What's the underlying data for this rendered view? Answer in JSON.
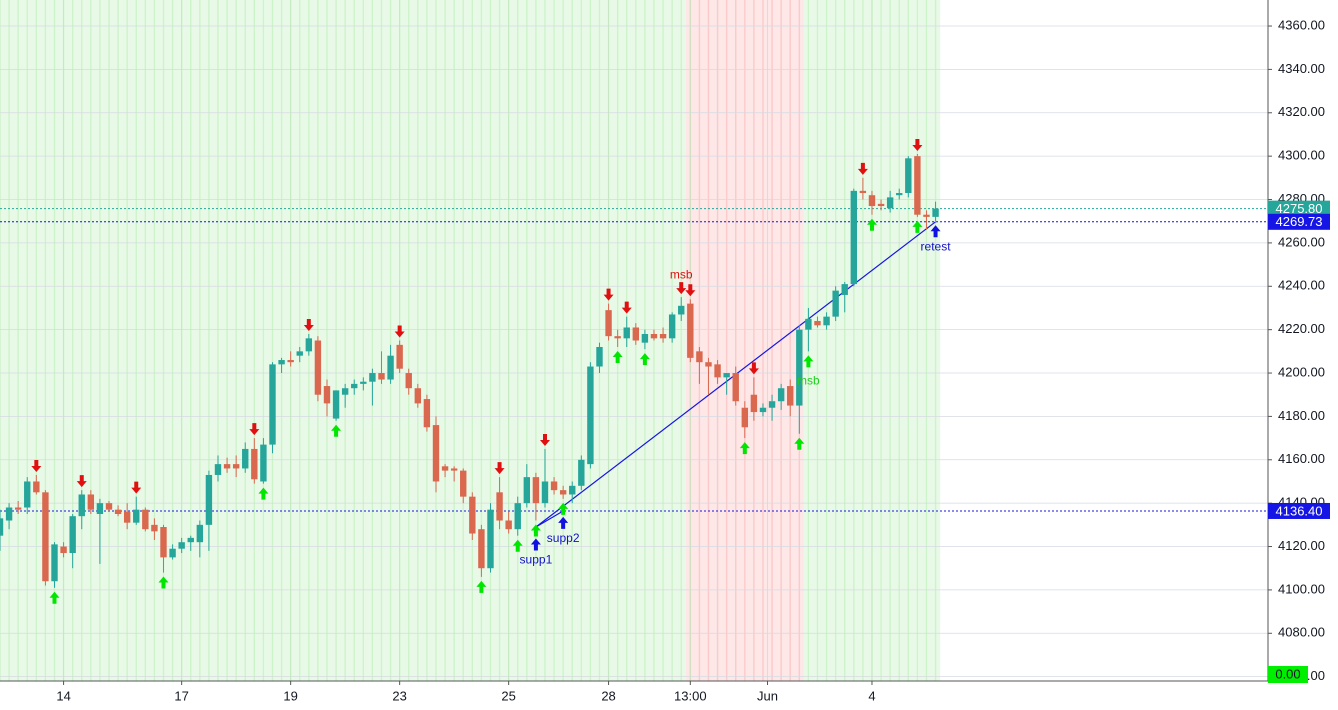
{
  "chart_data": {
    "type": "candlestick",
    "x": [
      0,
      1,
      2,
      3,
      4,
      5,
      6,
      7,
      8,
      9,
      10,
      11,
      12,
      13,
      14,
      15,
      16,
      17,
      18,
      19,
      20,
      21,
      22,
      23,
      24,
      25,
      26,
      27,
      28,
      29,
      30,
      31,
      32,
      33,
      34,
      35,
      36,
      37,
      38,
      39,
      40,
      41,
      42,
      43,
      44,
      45,
      46,
      47,
      48,
      49,
      50,
      51,
      52,
      53,
      54,
      55,
      56,
      57,
      58,
      59,
      60,
      61,
      62,
      63,
      64,
      65,
      66,
      67,
      68,
      69,
      70,
      71,
      72,
      73,
      74,
      75,
      76,
      77,
      78,
      79,
      80,
      81,
      82,
      83,
      84,
      85,
      86,
      87,
      88,
      89,
      90,
      91,
      92,
      93,
      94,
      95,
      96,
      97,
      98,
      99,
      100,
      101,
      102,
      103
    ],
    "open": [
      4125,
      4132,
      4138,
      4138,
      4150,
      4145,
      4104,
      4120,
      4117,
      4134,
      4144,
      4135,
      4140,
      4137,
      4136,
      4131,
      4137,
      4130,
      4129,
      4115,
      4119,
      4122,
      4122,
      4130,
      4153,
      4158,
      4158,
      4156,
      4165,
      4150,
      4167,
      4204,
      4206,
      4208,
      4210,
      4215,
      4194,
      4179,
      4190,
      4193,
      4195,
      4196,
      4200,
      4197,
      4213,
      4200,
      4193,
      4188,
      4176,
      4157,
      4156,
      4155,
      4143,
      4128,
      4110,
      4145,
      4132,
      4128,
      4140,
      4152,
      4140,
      4150,
      4146,
      4144,
      4148,
      4158,
      4203,
      4229,
      4217,
      4216,
      4221,
      4214,
      4218,
      4218,
      4216,
      4227,
      4232,
      4210,
      4205,
      4204,
      4198,
      4200,
      4184,
      4190,
      4182,
      4184,
      4187,
      4194,
      4185,
      4220,
      4224,
      4222,
      4226,
      4236,
      4241,
      4284,
      4282,
      4278,
      4276,
      4282,
      4283,
      4300,
      4273,
      4272
    ],
    "high": [
      4137,
      4140,
      4141,
      4152,
      4153,
      4146,
      4122,
      4122,
      4135,
      4146,
      4146,
      4142,
      4141,
      4139,
      4140,
      4143,
      4138,
      4133,
      4130,
      4121,
      4124,
      4125,
      4132,
      4155,
      4162,
      4161,
      4162,
      4168,
      4170,
      4170,
      4205,
      4207,
      4210,
      4212,
      4218,
      4217,
      4197,
      4192,
      4195,
      4197,
      4198,
      4202,
      4210,
      4213,
      4215,
      4202,
      4195,
      4190,
      4180,
      4158,
      4157,
      4156,
      4145,
      4130,
      4140,
      4152,
      4136,
      4143,
      4158,
      4154,
      4165,
      4152,
      4148,
      4150,
      4162,
      4205,
      4214,
      4232,
      4220,
      4226,
      4223,
      4220,
      4220,
      4221,
      4228,
      4235,
      4234,
      4212,
      4207,
      4206,
      4200,
      4203,
      4187,
      4198,
      4186,
      4190,
      4195,
      4197,
      4222,
      4230,
      4226,
      4228,
      4240,
      4242,
      4285,
      4290,
      4284,
      4280,
      4284,
      4285,
      4300,
      4301,
      4275,
      4279
    ],
    "low": [
      4118,
      4128,
      4135,
      4135,
      4144,
      4102,
      4101,
      4115,
      4110,
      4128,
      4135,
      4112,
      4136,
      4134,
      4128,
      4130,
      4127,
      4123,
      4108,
      4114,
      4117,
      4118,
      4115,
      4118,
      4150,
      4154,
      4152,
      4154,
      4149,
      4149,
      4163,
      4200,
      4203,
      4205,
      4208,
      4187,
      4180,
      4178,
      4184,
      4190,
      4192,
      4185,
      4195,
      4195,
      4200,
      4190,
      4184,
      4173,
      4145,
      4152,
      4150,
      4140,
      4123,
      4106,
      4108,
      4128,
      4126,
      4125,
      4138,
      4132,
      4138,
      4144,
      4142,
      4140,
      4146,
      4156,
      4200,
      4215,
      4212,
      4212,
      4213,
      4211,
      4215,
      4214,
      4214,
      4224,
      4205,
      4195,
      4190,
      4195,
      4190,
      4185,
      4170,
      4178,
      4180,
      4178,
      4183,
      4180,
      4172,
      4210,
      4221,
      4220,
      4224,
      4228,
      4240,
      4280,
      4273,
      4275,
      4274,
      4280,
      4281,
      4272,
      4266,
      4270
    ],
    "close": [
      4133,
      4138,
      4137,
      4150,
      4145,
      4104,
      4121,
      4117,
      4134,
      4144,
      4137,
      4140,
      4137,
      4135,
      4131,
      4137,
      4128,
      4127,
      4115,
      4119,
      4122,
      4124,
      4130,
      4153,
      4158,
      4156,
      4156,
      4165,
      4151,
      4167,
      4204,
      4206,
      4205,
      4210,
      4216,
      4190,
      4186,
      4192,
      4193,
      4195,
      4196,
      4200,
      4197,
      4208,
      4202,
      4193,
      4186,
      4175,
      4150,
      4155,
      4155,
      4143,
      4126,
      4110,
      4137,
      4132,
      4128,
      4140,
      4152,
      4140,
      4150,
      4146,
      4144,
      4148,
      4160,
      4203,
      4212,
      4217,
      4216,
      4221,
      4215,
      4218,
      4216,
      4216,
      4227,
      4231,
      4207,
      4205,
      4203,
      4198,
      4200,
      4187,
      4175,
      4182,
      4184,
      4187,
      4193,
      4185,
      4220,
      4225,
      4222,
      4226,
      4238,
      4241,
      4284,
      4283,
      4277,
      4277,
      4281,
      4283,
      4299,
      4273,
      4272,
      4275.8
    ],
    "up_color": "#26a69a",
    "down_color": "#d9684f",
    "xlim": [
      0,
      139.6
    ],
    "ylim": [
      4058,
      4372
    ],
    "xticks": [
      {
        "value": 7,
        "label": "14"
      },
      {
        "value": 20,
        "label": "17"
      },
      {
        "value": 32,
        "label": "19"
      },
      {
        "value": 44,
        "label": "23"
      },
      {
        "value": 56,
        "label": "25"
      },
      {
        "value": 67,
        "label": "28"
      },
      {
        "value": 76,
        "label": "13:00"
      },
      {
        "value": 84.5,
        "label": "Jun"
      },
      {
        "value": 96,
        "label": "4"
      }
    ],
    "yticks": [
      {
        "value": 4060,
        "label": "4060.00"
      },
      {
        "value": 4080,
        "label": "4080.00"
      },
      {
        "value": 4100,
        "label": "4100.00"
      },
      {
        "value": 4120,
        "label": "4120.00"
      },
      {
        "value": 4140,
        "label": "4140.00"
      },
      {
        "value": 4160,
        "label": "4160.00"
      },
      {
        "value": 4180,
        "label": "4180.00"
      },
      {
        "value": 4200,
        "label": "4200.00"
      },
      {
        "value": 4220,
        "label": "4220.00"
      },
      {
        "value": 4240,
        "label": "4240.00"
      },
      {
        "value": 4260,
        "label": "4260.00"
      },
      {
        "value": 4280,
        "label": "4280.00"
      },
      {
        "value": 4300,
        "label": "4300.00"
      },
      {
        "value": 4320,
        "label": "4320.00"
      },
      {
        "value": 4340,
        "label": "4340.00"
      },
      {
        "value": 4360,
        "label": "4360.00"
      }
    ],
    "grid": true,
    "regions": [
      {
        "from": -1,
        "to": 75.5,
        "color": "#cdf3c9"
      },
      {
        "from": 75.5,
        "to": 88.5,
        "color": "#fbcaca"
      },
      {
        "from": 88.5,
        "to": 103.5,
        "color": "#cdf3c9"
      }
    ],
    "up_arrows": {
      "color": "#00e600",
      "x": [
        6,
        18,
        29,
        37,
        53,
        57,
        59,
        62,
        68,
        71,
        82,
        88,
        89,
        96,
        101
      ]
    },
    "down_arrows": {
      "color": "#e01010",
      "x": [
        4,
        9,
        15,
        28,
        34,
        44,
        55,
        60,
        67,
        69,
        75,
        76,
        83,
        95,
        101
      ]
    },
    "pivot_arrows": {
      "color": "#1010e0",
      "x": [
        59,
        62,
        103
      ]
    },
    "annotations": [
      {
        "text": "supp1",
        "x": 59,
        "color": "#1010c8",
        "side": "below"
      },
      {
        "text": "supp2",
        "x": 62,
        "color": "#1010c8",
        "side": "below"
      },
      {
        "text": "retest",
        "x": 103,
        "color": "#1010c8",
        "side": "below"
      },
      {
        "text": "msb",
        "x": 75,
        "color": "#e01010",
        "side": "above"
      },
      {
        "text": "msb",
        "x": 89,
        "color": "#22cc22",
        "side": "below"
      }
    ],
    "trendlines": [
      {
        "x": [
          59,
          103
        ],
        "y": [
          4129,
          4269.73
        ],
        "color": "#1515e6"
      },
      {
        "x": [
          59,
          62
        ],
        "y": [
          4129,
          4136.4
        ],
        "color": "#1515e6"
      }
    ],
    "hlines": [
      {
        "value": 4275.8,
        "label": "4275.80",
        "color": "#26a69a"
      },
      {
        "value": 4269.73,
        "color": "#1515e6"
      },
      {
        "value": 4136.4,
        "label": "4136.40",
        "color": "#1515e6"
      }
    ],
    "indicator": {
      "value": 0,
      "label": "0.00",
      "color": "#00ee00"
    }
  }
}
